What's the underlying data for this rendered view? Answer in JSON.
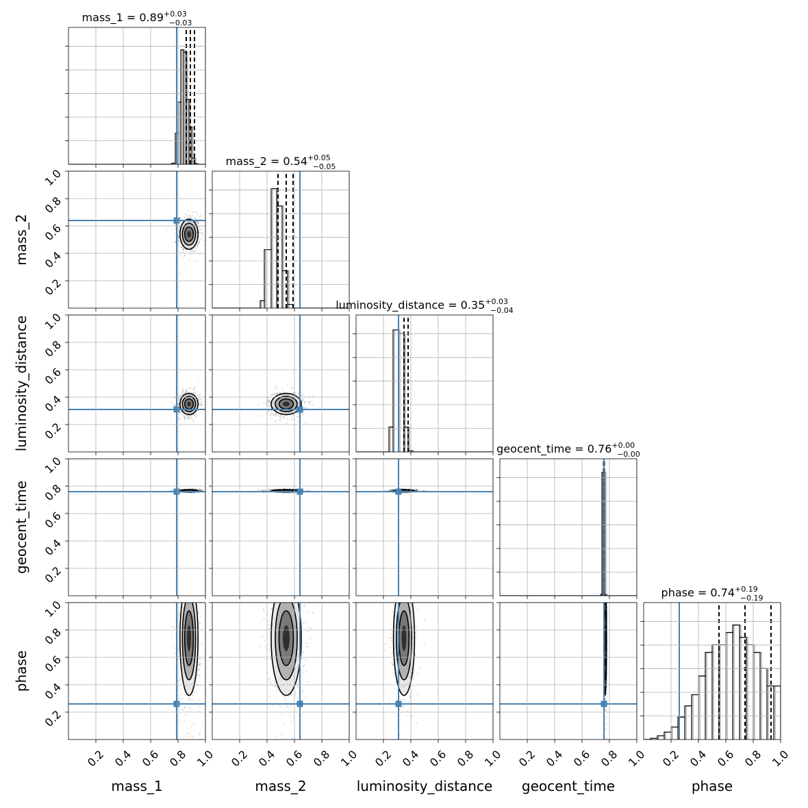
{
  "chart_data": {
    "type": "corner",
    "parameters": [
      {
        "name": "mass_1",
        "axis_label": "mass_1",
        "title_main": "mass_1 = 0.89",
        "title_plus": "+0.03",
        "title_minus": "−0.03",
        "median": 0.89,
        "err_plus": 0.03,
        "err_minus": 0.03,
        "truth": 0.79,
        "quantiles": [
          0.86,
          0.89,
          0.92
        ]
      },
      {
        "name": "mass_2",
        "axis_label": "mass_2",
        "title_main": "mass_2 = 0.54",
        "title_plus": "+0.05",
        "title_minus": "−0.05",
        "median": 0.54,
        "err_plus": 0.05,
        "err_minus": 0.05,
        "truth": 0.64,
        "quantiles": [
          0.48,
          0.54,
          0.59
        ]
      },
      {
        "name": "luminosity_distance",
        "axis_label": "luminosity_distance",
        "title_main": "luminosity_distance = 0.35",
        "title_plus": "+0.03",
        "title_minus": "−0.04",
        "median": 0.35,
        "err_plus": 0.03,
        "err_minus": 0.04,
        "truth": 0.31,
        "quantiles": [
          0.31,
          0.35,
          0.38
        ]
      },
      {
        "name": "geocent_time",
        "axis_label": "geocent_time",
        "title_main": "geocent_time = 0.76",
        "title_plus": "+0.00",
        "title_minus": "−0.00",
        "median": 0.76,
        "err_plus": 0.0,
        "err_minus": 0.0,
        "truth": 0.76,
        "quantiles": [
          0.757,
          0.76,
          0.763
        ]
      },
      {
        "name": "phase",
        "axis_label": "phase",
        "title_main": "phase = 0.74",
        "title_plus": "+0.19",
        "title_minus": "−0.19",
        "median": 0.74,
        "err_plus": 0.19,
        "err_minus": 0.19,
        "truth": 0.26,
        "quantiles": [
          0.55,
          0.74,
          0.93
        ]
      }
    ],
    "xlim": [
      0,
      1
    ],
    "ylim": [
      0,
      1
    ],
    "tick_labels": [
      "0.2",
      "0.4",
      "0.6",
      "0.8",
      "1.0"
    ],
    "tick_values": [
      0.2,
      0.4,
      0.6,
      0.8,
      1.0
    ],
    "grid": true,
    "truth_color": "#4682b4",
    "histograms": [
      {
        "param": "mass_1",
        "bins": [
          [
            0.75,
            0.76,
            0.005
          ],
          [
            0.76,
            0.78,
            0.01
          ],
          [
            0.78,
            0.8,
            0.25
          ],
          [
            0.8,
            0.82,
            0.5
          ],
          [
            0.82,
            0.84,
            0.92
          ],
          [
            0.84,
            0.86,
            0.9
          ],
          [
            0.86,
            0.88,
            0.52
          ],
          [
            0.88,
            0.9,
            0.3
          ],
          [
            0.9,
            0.92,
            0.05
          ],
          [
            0.92,
            0.94,
            0.005
          ]
        ]
      },
      {
        "param": "mass_2",
        "bins": [
          [
            0.35,
            0.38,
            0.06
          ],
          [
            0.38,
            0.43,
            0.47
          ],
          [
            0.43,
            0.47,
            0.96
          ],
          [
            0.47,
            0.51,
            0.82
          ],
          [
            0.51,
            0.55,
            0.3
          ],
          [
            0.55,
            0.59,
            0.03
          ]
        ]
      },
      {
        "param": "luminosity_distance",
        "bins": [
          [
            0.24,
            0.27,
            0.2
          ],
          [
            0.27,
            0.31,
            0.98
          ],
          [
            0.31,
            0.35,
            0.95
          ],
          [
            0.35,
            0.38,
            0.2
          ],
          [
            0.38,
            0.41,
            0.01
          ]
        ]
      },
      {
        "param": "geocent_time",
        "bins": [
          [
            0.735,
            0.745,
            0.01
          ],
          [
            0.745,
            0.755,
            0.99
          ],
          [
            0.755,
            0.765,
            0.99
          ],
          [
            0.765,
            0.775,
            0.01
          ]
        ]
      },
      {
        "param": "phase",
        "bins": [
          [
            0.05,
            0.1,
            0.01
          ],
          [
            0.1,
            0.15,
            0.03
          ],
          [
            0.15,
            0.2,
            0.06
          ],
          [
            0.2,
            0.25,
            0.1
          ],
          [
            0.25,
            0.3,
            0.18
          ],
          [
            0.3,
            0.35,
            0.27
          ],
          [
            0.35,
            0.4,
            0.36
          ],
          [
            0.4,
            0.45,
            0.51
          ],
          [
            0.45,
            0.5,
            0.7
          ],
          [
            0.5,
            0.55,
            0.76
          ],
          [
            0.55,
            0.6,
            0.76
          ],
          [
            0.6,
            0.65,
            0.86
          ],
          [
            0.65,
            0.7,
            0.92
          ],
          [
            0.7,
            0.75,
            0.82
          ],
          [
            0.75,
            0.8,
            0.76
          ],
          [
            0.8,
            0.85,
            0.7
          ],
          [
            0.85,
            0.9,
            0.57
          ],
          [
            0.9,
            0.95,
            0.43
          ],
          [
            0.95,
            1.0,
            0.43
          ]
        ]
      }
    ],
    "density_pairs": [
      {
        "x": "mass_1",
        "y": "mass_2",
        "center": [
          0.88,
          0.54
        ],
        "sigma": [
          0.03,
          0.05
        ]
      },
      {
        "x": "mass_1",
        "y": "luminosity_distance",
        "center": [
          0.88,
          0.35
        ],
        "sigma": [
          0.03,
          0.035
        ]
      },
      {
        "x": "mass_2",
        "y": "luminosity_distance",
        "center": [
          0.54,
          0.35
        ],
        "sigma": [
          0.05,
          0.035
        ]
      },
      {
        "x": "mass_1",
        "y": "geocent_time",
        "center": [
          0.88,
          0.766
        ],
        "sigma": [
          0.03,
          0.004
        ]
      },
      {
        "x": "mass_2",
        "y": "geocent_time",
        "center": [
          0.54,
          0.766
        ],
        "sigma": [
          0.05,
          0.004
        ]
      },
      {
        "x": "luminosity_distance",
        "y": "geocent_time",
        "center": [
          0.35,
          0.766
        ],
        "sigma": [
          0.035,
          0.004
        ]
      },
      {
        "x": "mass_1",
        "y": "phase",
        "center": [
          0.88,
          0.74
        ],
        "sigma": [
          0.03,
          0.19
        ]
      },
      {
        "x": "mass_2",
        "y": "phase",
        "center": [
          0.54,
          0.74
        ],
        "sigma": [
          0.05,
          0.19
        ]
      },
      {
        "x": "luminosity_distance",
        "y": "phase",
        "center": [
          0.35,
          0.74
        ],
        "sigma": [
          0.035,
          0.19
        ]
      },
      {
        "x": "geocent_time",
        "y": "phase",
        "center": [
          0.77,
          0.74
        ],
        "sigma": [
          0.004,
          0.19
        ]
      }
    ]
  }
}
